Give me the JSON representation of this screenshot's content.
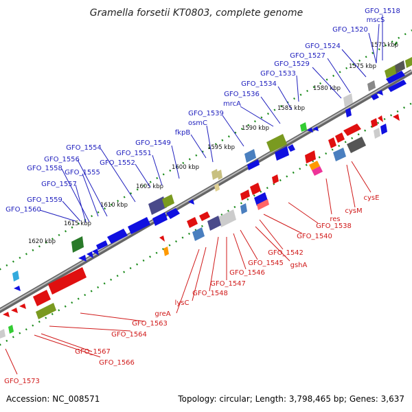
{
  "title": "Gramella forsetii KT0803, complete genome",
  "footer": {
    "accession": "Accession: NC_008571",
    "info": "Topology: circular; Length: 3,798,465 bp; Genes: 3,637"
  },
  "colors": {
    "backbone": "#777777",
    "tick_green": "#1a8a1a",
    "plus_strand": "#1010e0",
    "minus_strand": "#e01010",
    "blue_label": "#1d1dbd",
    "red_label": "#d01818"
  },
  "kbp_ticks": [
    "1570 kbp",
    "1575 kbp",
    "1580 kbp",
    "1585 kbp",
    "1590 kbp",
    "1595 kbp",
    "1600 kbp",
    "1605 kbp",
    "1610 kbp",
    "1615 kbp",
    "1620 kbp"
  ],
  "blue_labels": [
    "GFO_1518",
    "mscS",
    "GFO_1520",
    "GFO_1524",
    "GFO_1527",
    "GFO_1529",
    "GFO_1533",
    "GFO_1534",
    "GFO_1536",
    "mrcA",
    "GFO_1539",
    "osmC",
    "fkpB",
    "GFO_1549",
    "GFO_1551",
    "GFO_1552",
    "GFO_1554",
    "GFO_1556",
    "GFO_1555",
    "GFO_1558",
    "GFO_1557",
    "GFO_1559",
    "GFO_1560"
  ],
  "red_labels": [
    "cysE",
    "cysM",
    "res",
    "GFO_1538",
    "GFO_1540",
    "GFO_1542",
    "gshA",
    "GFO_1545",
    "GFO_1546",
    "GFO_1547",
    "GFO_1548",
    "lysC",
    "greA",
    "GFO_1563",
    "GFO_1564",
    "GFO_1567",
    "GFO_1566",
    "GFO_1573"
  ]
}
